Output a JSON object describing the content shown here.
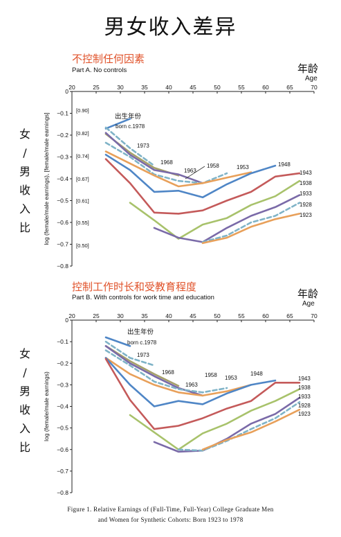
{
  "page": {
    "title": "男女收入差异"
  },
  "caption": {
    "line1": "Figure 1. Relative Earnings of (Full-Time, Full-Year) College Graduate Men",
    "line2": "and Women for Synthetic Cohorts: Born 1923 to 1978"
  },
  "vertical_label": [
    "女",
    "/",
    "男",
    "收",
    "入",
    "比"
  ],
  "chart_data": [
    {
      "type": "line",
      "panel_title_cn": "不控制任何因素",
      "title": "Part A. No controls",
      "xlabel": "年龄",
      "xlabel_en": "Age",
      "ylabel": "log (female/male earnings), [female/male earnings]",
      "xlim": [
        20,
        70
      ],
      "ylim": [
        -0.8,
        0
      ],
      "xticks": [
        "20",
        "25",
        "30",
        "35",
        "40",
        "45",
        "50",
        "55",
        "60",
        "65",
        "70"
      ],
      "yticks": [
        "0",
        "−0.1",
        "−0.2",
        "−0.3",
        "−0.4",
        "−0.5",
        "−0.6",
        "−0.7",
        "−0.8"
      ],
      "ratio_labels": [
        {
          "y": -0.085,
          "text": "[0.90]"
        },
        {
          "y": -0.19,
          "text": "[0.82]"
        },
        {
          "y": -0.295,
          "text": "[0.74]"
        },
        {
          "y": -0.4,
          "text": "[0.67]"
        },
        {
          "y": -0.5,
          "text": "[0.61]"
        },
        {
          "y": -0.6,
          "text": "[0.55]"
        },
        {
          "y": -0.705,
          "text": "[0.50]"
        }
      ],
      "born_label": {
        "cn": "出生年份",
        "en": "born c.1978"
      },
      "series": [
        {
          "name": "1978",
          "color": "#4f86c6",
          "dashed": false,
          "x": [
            27,
            32
          ],
          "y": [
            -0.17,
            -0.125
          ]
        },
        {
          "name": "1973",
          "color": "#7fb3c7",
          "dashed": true,
          "x": [
            27,
            32,
            37
          ],
          "y": [
            -0.165,
            -0.26,
            -0.34
          ]
        },
        {
          "name": "1968",
          "color": "#a6a16a",
          "dashed": false,
          "x": [
            27,
            32,
            37,
            42
          ],
          "y": [
            -0.195,
            -0.28,
            -0.35,
            -0.385
          ]
        },
        {
          "name": "1963",
          "color": "#7a6aa8",
          "dashed": false,
          "x": [
            27,
            32,
            37,
            42,
            47
          ],
          "y": [
            -0.19,
            -0.29,
            -0.36,
            -0.38,
            -0.42
          ]
        },
        {
          "name": "1958",
          "color": "#7fb3c7",
          "dashed": true,
          "x": [
            27,
            32,
            37,
            42,
            47,
            52
          ],
          "y": [
            -0.235,
            -0.3,
            -0.38,
            -0.41,
            -0.42,
            -0.375
          ]
        },
        {
          "name": "1953",
          "color": "#e8a05a",
          "dashed": false,
          "x": [
            27,
            32,
            37,
            42,
            47,
            52,
            57
          ],
          "y": [
            -0.275,
            -0.33,
            -0.385,
            -0.435,
            -0.42,
            -0.395,
            -0.37
          ]
        },
        {
          "name": "1948",
          "color": "#4f86c6",
          "dashed": false,
          "x": [
            27,
            32,
            37,
            42,
            47,
            52,
            57,
            62
          ],
          "y": [
            -0.29,
            -0.36,
            -0.46,
            -0.455,
            -0.485,
            -0.425,
            -0.375,
            -0.34
          ]
        },
        {
          "name": "1943",
          "color": "#c45a5a",
          "dashed": false,
          "x": [
            27,
            32,
            37,
            42,
            47,
            52,
            57,
            62,
            67
          ],
          "y": [
            -0.31,
            -0.42,
            -0.555,
            -0.56,
            -0.545,
            -0.5,
            -0.46,
            -0.39,
            -0.375
          ]
        },
        {
          "name": "1938",
          "color": "#a8c26b",
          "dashed": false,
          "x": [
            32,
            37,
            42,
            47,
            52,
            57,
            62,
            67
          ],
          "y": [
            -0.51,
            -0.59,
            -0.675,
            -0.61,
            -0.58,
            -0.52,
            -0.48,
            -0.41
          ]
        },
        {
          "name": "1933",
          "color": "#7a6aa8",
          "dashed": false,
          "x": [
            37,
            42,
            47,
            52,
            57,
            62,
            67
          ],
          "y": [
            -0.625,
            -0.67,
            -0.69,
            -0.625,
            -0.57,
            -0.53,
            -0.475
          ]
        },
        {
          "name": "1928",
          "color": "#7fb3c7",
          "dashed": true,
          "x": [
            47,
            52,
            57,
            62,
            67
          ],
          "y": [
            -0.69,
            -0.66,
            -0.6,
            -0.57,
            -0.51
          ]
        },
        {
          "name": "1923",
          "color": "#e8a05a",
          "dashed": false,
          "x": [
            47,
            52,
            57,
            62,
            67
          ],
          "y": [
            -0.695,
            -0.67,
            -0.62,
            -0.585,
            -0.56
          ]
        }
      ]
    },
    {
      "type": "line",
      "panel_title_cn": "控制工作时长和受教育程度",
      "title": "Part B. With controls for work time and education",
      "xlabel": "年龄",
      "xlabel_en": "Age",
      "ylabel": "log (female/male earnings)",
      "xlim": [
        20,
        70
      ],
      "ylim": [
        -0.8,
        0
      ],
      "xticks": [
        "20",
        "25",
        "30",
        "35",
        "40",
        "45",
        "50",
        "55",
        "60",
        "65",
        "70"
      ],
      "yticks": [
        "0",
        "−0.1",
        "−0.2",
        "−0.3",
        "−0.4",
        "−0.5",
        "−0.6",
        "−0.7",
        "−0.8"
      ],
      "born_label": {
        "cn": "出生年份",
        "en": "born c.1978"
      },
      "series": [
        {
          "name": "1978",
          "color": "#4f86c6",
          "dashed": false,
          "x": [
            27,
            32
          ],
          "y": [
            -0.08,
            -0.12
          ]
        },
        {
          "name": "1973",
          "color": "#7fb3c7",
          "dashed": true,
          "x": [
            27,
            32,
            37
          ],
          "y": [
            -0.1,
            -0.175,
            -0.21
          ]
        },
        {
          "name": "1968",
          "color": "#a6a16a",
          "dashed": false,
          "x": [
            27,
            32,
            37,
            42
          ],
          "y": [
            -0.12,
            -0.19,
            -0.25,
            -0.305
          ]
        },
        {
          "name": "1963",
          "color": "#7a6aa8",
          "dashed": false,
          "x": [
            27,
            32,
            37,
            42,
            47
          ],
          "y": [
            -0.12,
            -0.2,
            -0.26,
            -0.315,
            -0.35
          ]
        },
        {
          "name": "1958",
          "color": "#7fb3c7",
          "dashed": true,
          "x": [
            27,
            32,
            37,
            42,
            47,
            52
          ],
          "y": [
            -0.14,
            -0.21,
            -0.285,
            -0.32,
            -0.335,
            -0.315
          ]
        },
        {
          "name": "1953",
          "color": "#e8a05a",
          "dashed": false,
          "x": [
            27,
            32,
            37,
            42,
            47,
            52,
            57
          ],
          "y": [
            -0.175,
            -0.25,
            -0.3,
            -0.335,
            -0.35,
            -0.33,
            -0.3
          ]
        },
        {
          "name": "1948",
          "color": "#4f86c6",
          "dashed": false,
          "x": [
            27,
            32,
            37,
            42,
            47,
            52,
            57,
            62
          ],
          "y": [
            -0.175,
            -0.3,
            -0.4,
            -0.375,
            -0.39,
            -0.34,
            -0.3,
            -0.28
          ]
        },
        {
          "name": "1943",
          "color": "#c45a5a",
          "dashed": false,
          "x": [
            27,
            32,
            37,
            42,
            47,
            52,
            57,
            62,
            67
          ],
          "y": [
            -0.18,
            -0.37,
            -0.505,
            -0.49,
            -0.455,
            -0.41,
            -0.375,
            -0.29,
            -0.29
          ]
        },
        {
          "name": "1938",
          "color": "#a8c26b",
          "dashed": false,
          "x": [
            32,
            37,
            42,
            47,
            52,
            57,
            62,
            67
          ],
          "y": [
            -0.44,
            -0.52,
            -0.6,
            -0.525,
            -0.48,
            -0.42,
            -0.375,
            -0.32
          ]
        },
        {
          "name": "1933",
          "color": "#7a6aa8",
          "dashed": false,
          "x": [
            37,
            42,
            47,
            52,
            57,
            62,
            67
          ],
          "y": [
            -0.565,
            -0.61,
            -0.605,
            -0.55,
            -0.48,
            -0.435,
            -0.36
          ]
        },
        {
          "name": "1928",
          "color": "#7fb3c7",
          "dashed": true,
          "x": [
            42,
            47,
            52,
            57,
            62,
            67
          ],
          "y": [
            -0.6,
            -0.605,
            -0.56,
            -0.505,
            -0.455,
            -0.38
          ]
        },
        {
          "name": "1923",
          "color": "#e8a05a",
          "dashed": false,
          "x": [
            47,
            52,
            57,
            62,
            67
          ],
          "y": [
            -0.6,
            -0.555,
            -0.52,
            -0.47,
            -0.415
          ]
        }
      ]
    }
  ]
}
